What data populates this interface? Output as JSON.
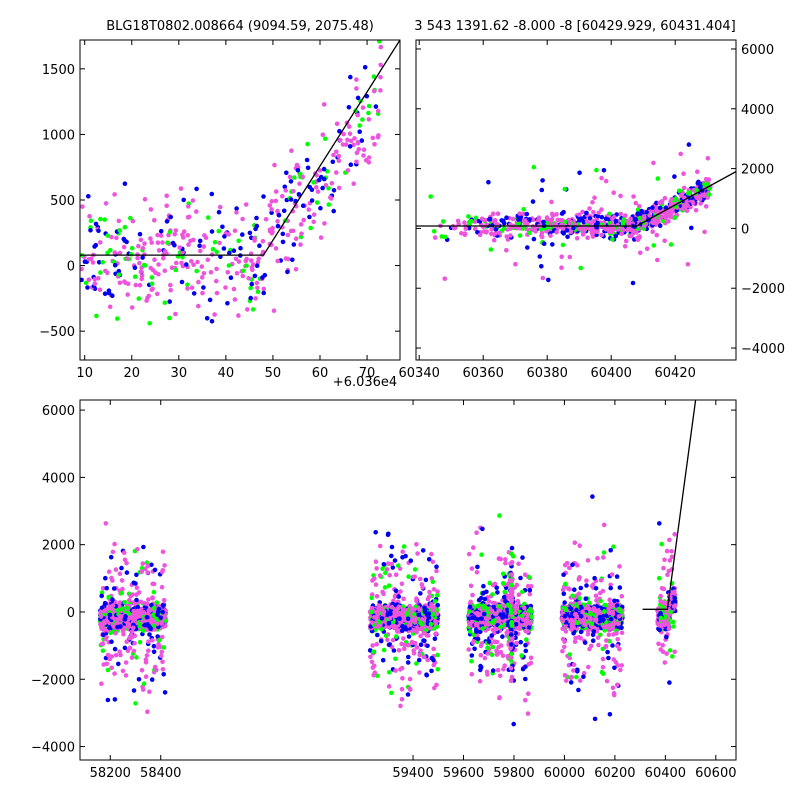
{
  "colors": {
    "green": "#00ff00",
    "blue": "#0000ee",
    "pink": "#ee55dd",
    "model": "#000000"
  },
  "chart_data": [
    {
      "type": "scatter",
      "title": "BLG18T0802.008664 (9094.59, 2075.48)",
      "x_offset_label": "+6.036e4",
      "xlim": [
        9,
        77
      ],
      "ylim": [
        -720,
        1720
      ],
      "x_ticks": [
        {
          "v": 10,
          "label": "10"
        },
        {
          "v": 20,
          "label": "20"
        },
        {
          "v": 30,
          "label": "30"
        },
        {
          "v": 40,
          "label": "40"
        },
        {
          "v": 50,
          "label": "50"
        },
        {
          "v": 60,
          "label": "60"
        },
        {
          "v": 70,
          "label": "70"
        }
      ],
      "y_ticks": [
        {
          "v": -500,
          "label": "−500"
        },
        {
          "v": 0,
          "label": "0"
        },
        {
          "v": 500,
          "label": "500"
        },
        {
          "v": 1000,
          "label": "1000"
        },
        {
          "v": 1500,
          "label": "1500"
        }
      ],
      "model": [
        [
          9,
          80
        ],
        [
          48,
          80
        ],
        [
          77,
          1720
        ]
      ]
    },
    {
      "type": "scatter",
      "title": "3 543 1391.62 -8.000 -8 [60429.929, 60431.404]",
      "xlim": [
        60339,
        60439
      ],
      "ylim": [
        -4400,
        6300
      ],
      "x_ticks": [
        {
          "v": 60340,
          "label": "60340"
        },
        {
          "v": 60360,
          "label": "60360"
        },
        {
          "v": 60380,
          "label": "60380"
        },
        {
          "v": 60400,
          "label": "60400"
        },
        {
          "v": 60420,
          "label": "60420"
        }
      ],
      "y_ticks": [
        {
          "v": -4000,
          "label": "−4000"
        },
        {
          "v": -2000,
          "label": "−2000"
        },
        {
          "v": 0,
          "label": "0"
        },
        {
          "v": 2000,
          "label": "2000"
        },
        {
          "v": 4000,
          "label": "4000"
        },
        {
          "v": 6000,
          "label": "6000"
        }
      ],
      "model": [
        [
          60339,
          80
        ],
        [
          60408,
          80
        ],
        [
          60439,
          1900
        ]
      ]
    },
    {
      "type": "scatter",
      "title": "",
      "xlim": [
        58080,
        60680
      ],
      "ylim": [
        -4400,
        6300
      ],
      "x_ticks": [
        {
          "v": 58200,
          "label": "58200"
        },
        {
          "v": 58400,
          "label": "58400"
        },
        {
          "v": 59400,
          "label": "59400"
        },
        {
          "v": 59600,
          "label": "59600"
        },
        {
          "v": 59800,
          "label": "59800"
        },
        {
          "v": 60000,
          "label": "60000"
        },
        {
          "v": 60200,
          "label": "60200"
        },
        {
          "v": 60400,
          "label": "60400"
        },
        {
          "v": 60600,
          "label": "60600"
        }
      ],
      "y_ticks": [
        {
          "v": -4000,
          "label": "−4000"
        },
        {
          "v": -2000,
          "label": "−2000"
        },
        {
          "v": 0,
          "label": "0"
        },
        {
          "v": 2000,
          "label": "2000"
        },
        {
          "v": 4000,
          "label": "4000"
        },
        {
          "v": 6000,
          "label": "6000"
        }
      ],
      "seasons": [
        [
          58160,
          58420
        ],
        [
          59230,
          59500
        ],
        [
          59620,
          59870
        ],
        [
          59990,
          60230
        ],
        [
          60370,
          60440
        ]
      ],
      "model": [
        [
          60310,
          80
        ],
        [
          60408,
          80
        ],
        [
          60520,
          6300
        ]
      ]
    }
  ]
}
